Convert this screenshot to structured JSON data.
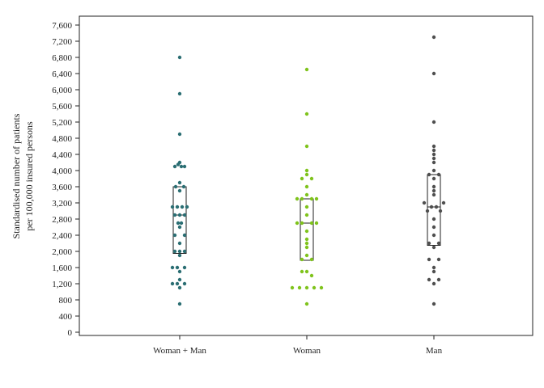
{
  "chart_data": {
    "type": "scatter",
    "subtype": "dot-plot-with-boxes",
    "ylabel_lines": [
      "Standardised number of patients",
      "per 100,000 insured persons"
    ],
    "xlabel": "",
    "ylim": [
      0,
      8000
    ],
    "yticks": [
      0,
      400,
      800,
      1200,
      1600,
      2000,
      2400,
      2800,
      3200,
      3600,
      4000,
      4400,
      4800,
      5200,
      5600,
      6000,
      6400,
      6800,
      7200,
      7600
    ],
    "ytick_labels": [
      "0",
      "400",
      "800",
      "1,200",
      "1,600",
      "2,000",
      "2,400",
      "2,800",
      "3,200",
      "3,600",
      "4,000",
      "4,400",
      "4,800",
      "5,200",
      "5,600",
      "6,000",
      "6,400",
      "6,800",
      "7,200",
      "7,600"
    ],
    "grid": false,
    "legend": "none",
    "categories": [
      "Woman + Man",
      "Woman",
      "Man"
    ],
    "series": [
      {
        "color": "#2b6e73",
        "box": {
          "q1": 1950,
          "median": 2900,
          "q3": 3600
        },
        "points": [
          {
            "y": 6800,
            "dx": 0
          },
          {
            "y": 5900,
            "dx": 0
          },
          {
            "y": 4900,
            "dx": 0
          },
          {
            "y": 4200,
            "dx": 0
          },
          {
            "y": 4150,
            "dx": -2
          },
          {
            "y": 4100,
            "dx": 2
          },
          {
            "y": 4100,
            "dx": -6
          },
          {
            "y": 4100,
            "dx": 6
          },
          {
            "y": 3700,
            "dx": 0
          },
          {
            "y": 3600,
            "dx": -5
          },
          {
            "y": 3600,
            "dx": 5
          },
          {
            "y": 3500,
            "dx": 0
          },
          {
            "y": 3100,
            "dx": -9
          },
          {
            "y": 3100,
            "dx": -3
          },
          {
            "y": 3100,
            "dx": 3
          },
          {
            "y": 3100,
            "dx": 9
          },
          {
            "y": 2900,
            "dx": -6
          },
          {
            "y": 2900,
            "dx": 0
          },
          {
            "y": 2900,
            "dx": 6
          },
          {
            "y": 2700,
            "dx": -2
          },
          {
            "y": 2700,
            "dx": 2
          },
          {
            "y": 2600,
            "dx": 0
          },
          {
            "y": 2400,
            "dx": -6
          },
          {
            "y": 2400,
            "dx": 6
          },
          {
            "y": 2200,
            "dx": 0
          },
          {
            "y": 2000,
            "dx": -6
          },
          {
            "y": 2000,
            "dx": 0
          },
          {
            "y": 2000,
            "dx": 6
          },
          {
            "y": 1900,
            "dx": 0
          },
          {
            "y": 1600,
            "dx": -9
          },
          {
            "y": 1600,
            "dx": -3
          },
          {
            "y": 1600,
            "dx": 6
          },
          {
            "y": 1500,
            "dx": 0
          },
          {
            "y": 1300,
            "dx": 0
          },
          {
            "y": 1200,
            "dx": -9
          },
          {
            "y": 1200,
            "dx": -3
          },
          {
            "y": 1200,
            "dx": 6
          },
          {
            "y": 1100,
            "dx": 0
          },
          {
            "y": 700,
            "dx": 0
          }
        ]
      },
      {
        "color": "#7fc31c",
        "box": {
          "q1": 1780,
          "median": 2700,
          "q3": 3300
        },
        "points": [
          {
            "y": 6500,
            "dx": 0
          },
          {
            "y": 5400,
            "dx": 0
          },
          {
            "y": 4600,
            "dx": 0
          },
          {
            "y": 4000,
            "dx": 0
          },
          {
            "y": 3900,
            "dx": 0
          },
          {
            "y": 3800,
            "dx": -6
          },
          {
            "y": 3800,
            "dx": 6
          },
          {
            "y": 3600,
            "dx": 0
          },
          {
            "y": 3400,
            "dx": 0
          },
          {
            "y": 3300,
            "dx": -12
          },
          {
            "y": 3300,
            "dx": -6
          },
          {
            "y": 3300,
            "dx": 6
          },
          {
            "y": 3300,
            "dx": 12
          },
          {
            "y": 3100,
            "dx": 0
          },
          {
            "y": 2900,
            "dx": 0
          },
          {
            "y": 2700,
            "dx": -12
          },
          {
            "y": 2700,
            "dx": -6
          },
          {
            "y": 2700,
            "dx": 6
          },
          {
            "y": 2700,
            "dx": 12
          },
          {
            "y": 2500,
            "dx": 0
          },
          {
            "y": 2300,
            "dx": 0
          },
          {
            "y": 2200,
            "dx": 0
          },
          {
            "y": 2100,
            "dx": 0
          },
          {
            "y": 1900,
            "dx": 0
          },
          {
            "y": 1800,
            "dx": -6
          },
          {
            "y": 1800,
            "dx": 6
          },
          {
            "y": 1500,
            "dx": -6
          },
          {
            "y": 1500,
            "dx": 0
          },
          {
            "y": 1400,
            "dx": 6
          },
          {
            "y": 1100,
            "dx": -18
          },
          {
            "y": 1100,
            "dx": -9
          },
          {
            "y": 1100,
            "dx": 0
          },
          {
            "y": 1100,
            "dx": 9
          },
          {
            "y": 1100,
            "dx": 18
          },
          {
            "y": 700,
            "dx": 0
          }
        ]
      },
      {
        "color": "#4f4f4f",
        "box": {
          "q1": 2150,
          "median": 3100,
          "q3": 3900
        },
        "points": [
          {
            "y": 7300,
            "dx": 0
          },
          {
            "y": 6400,
            "dx": 0
          },
          {
            "y": 5200,
            "dx": 0
          },
          {
            "y": 4600,
            "dx": 0
          },
          {
            "y": 4500,
            "dx": 0
          },
          {
            "y": 4400,
            "dx": 0
          },
          {
            "y": 4300,
            "dx": 0
          },
          {
            "y": 4200,
            "dx": 0
          },
          {
            "y": 4000,
            "dx": 0
          },
          {
            "y": 3900,
            "dx": -6
          },
          {
            "y": 3900,
            "dx": 6
          },
          {
            "y": 3800,
            "dx": 0
          },
          {
            "y": 3600,
            "dx": 0
          },
          {
            "y": 3500,
            "dx": 0
          },
          {
            "y": 3400,
            "dx": 0
          },
          {
            "y": 3200,
            "dx": -12
          },
          {
            "y": 3200,
            "dx": 12
          },
          {
            "y": 3100,
            "dx": -3
          },
          {
            "y": 3100,
            "dx": 3
          },
          {
            "y": 3000,
            "dx": -8
          },
          {
            "y": 3000,
            "dx": 8
          },
          {
            "y": 2800,
            "dx": 0
          },
          {
            "y": 2600,
            "dx": 0
          },
          {
            "y": 2400,
            "dx": 0
          },
          {
            "y": 2200,
            "dx": -6
          },
          {
            "y": 2200,
            "dx": 6
          },
          {
            "y": 2100,
            "dx": 0
          },
          {
            "y": 1800,
            "dx": -6
          },
          {
            "y": 1800,
            "dx": 6
          },
          {
            "y": 1600,
            "dx": 0
          },
          {
            "y": 1500,
            "dx": 0
          },
          {
            "y": 1300,
            "dx": -6
          },
          {
            "y": 1300,
            "dx": 6
          },
          {
            "y": 1200,
            "dx": 0
          },
          {
            "y": 700,
            "dx": 0
          }
        ]
      }
    ]
  }
}
